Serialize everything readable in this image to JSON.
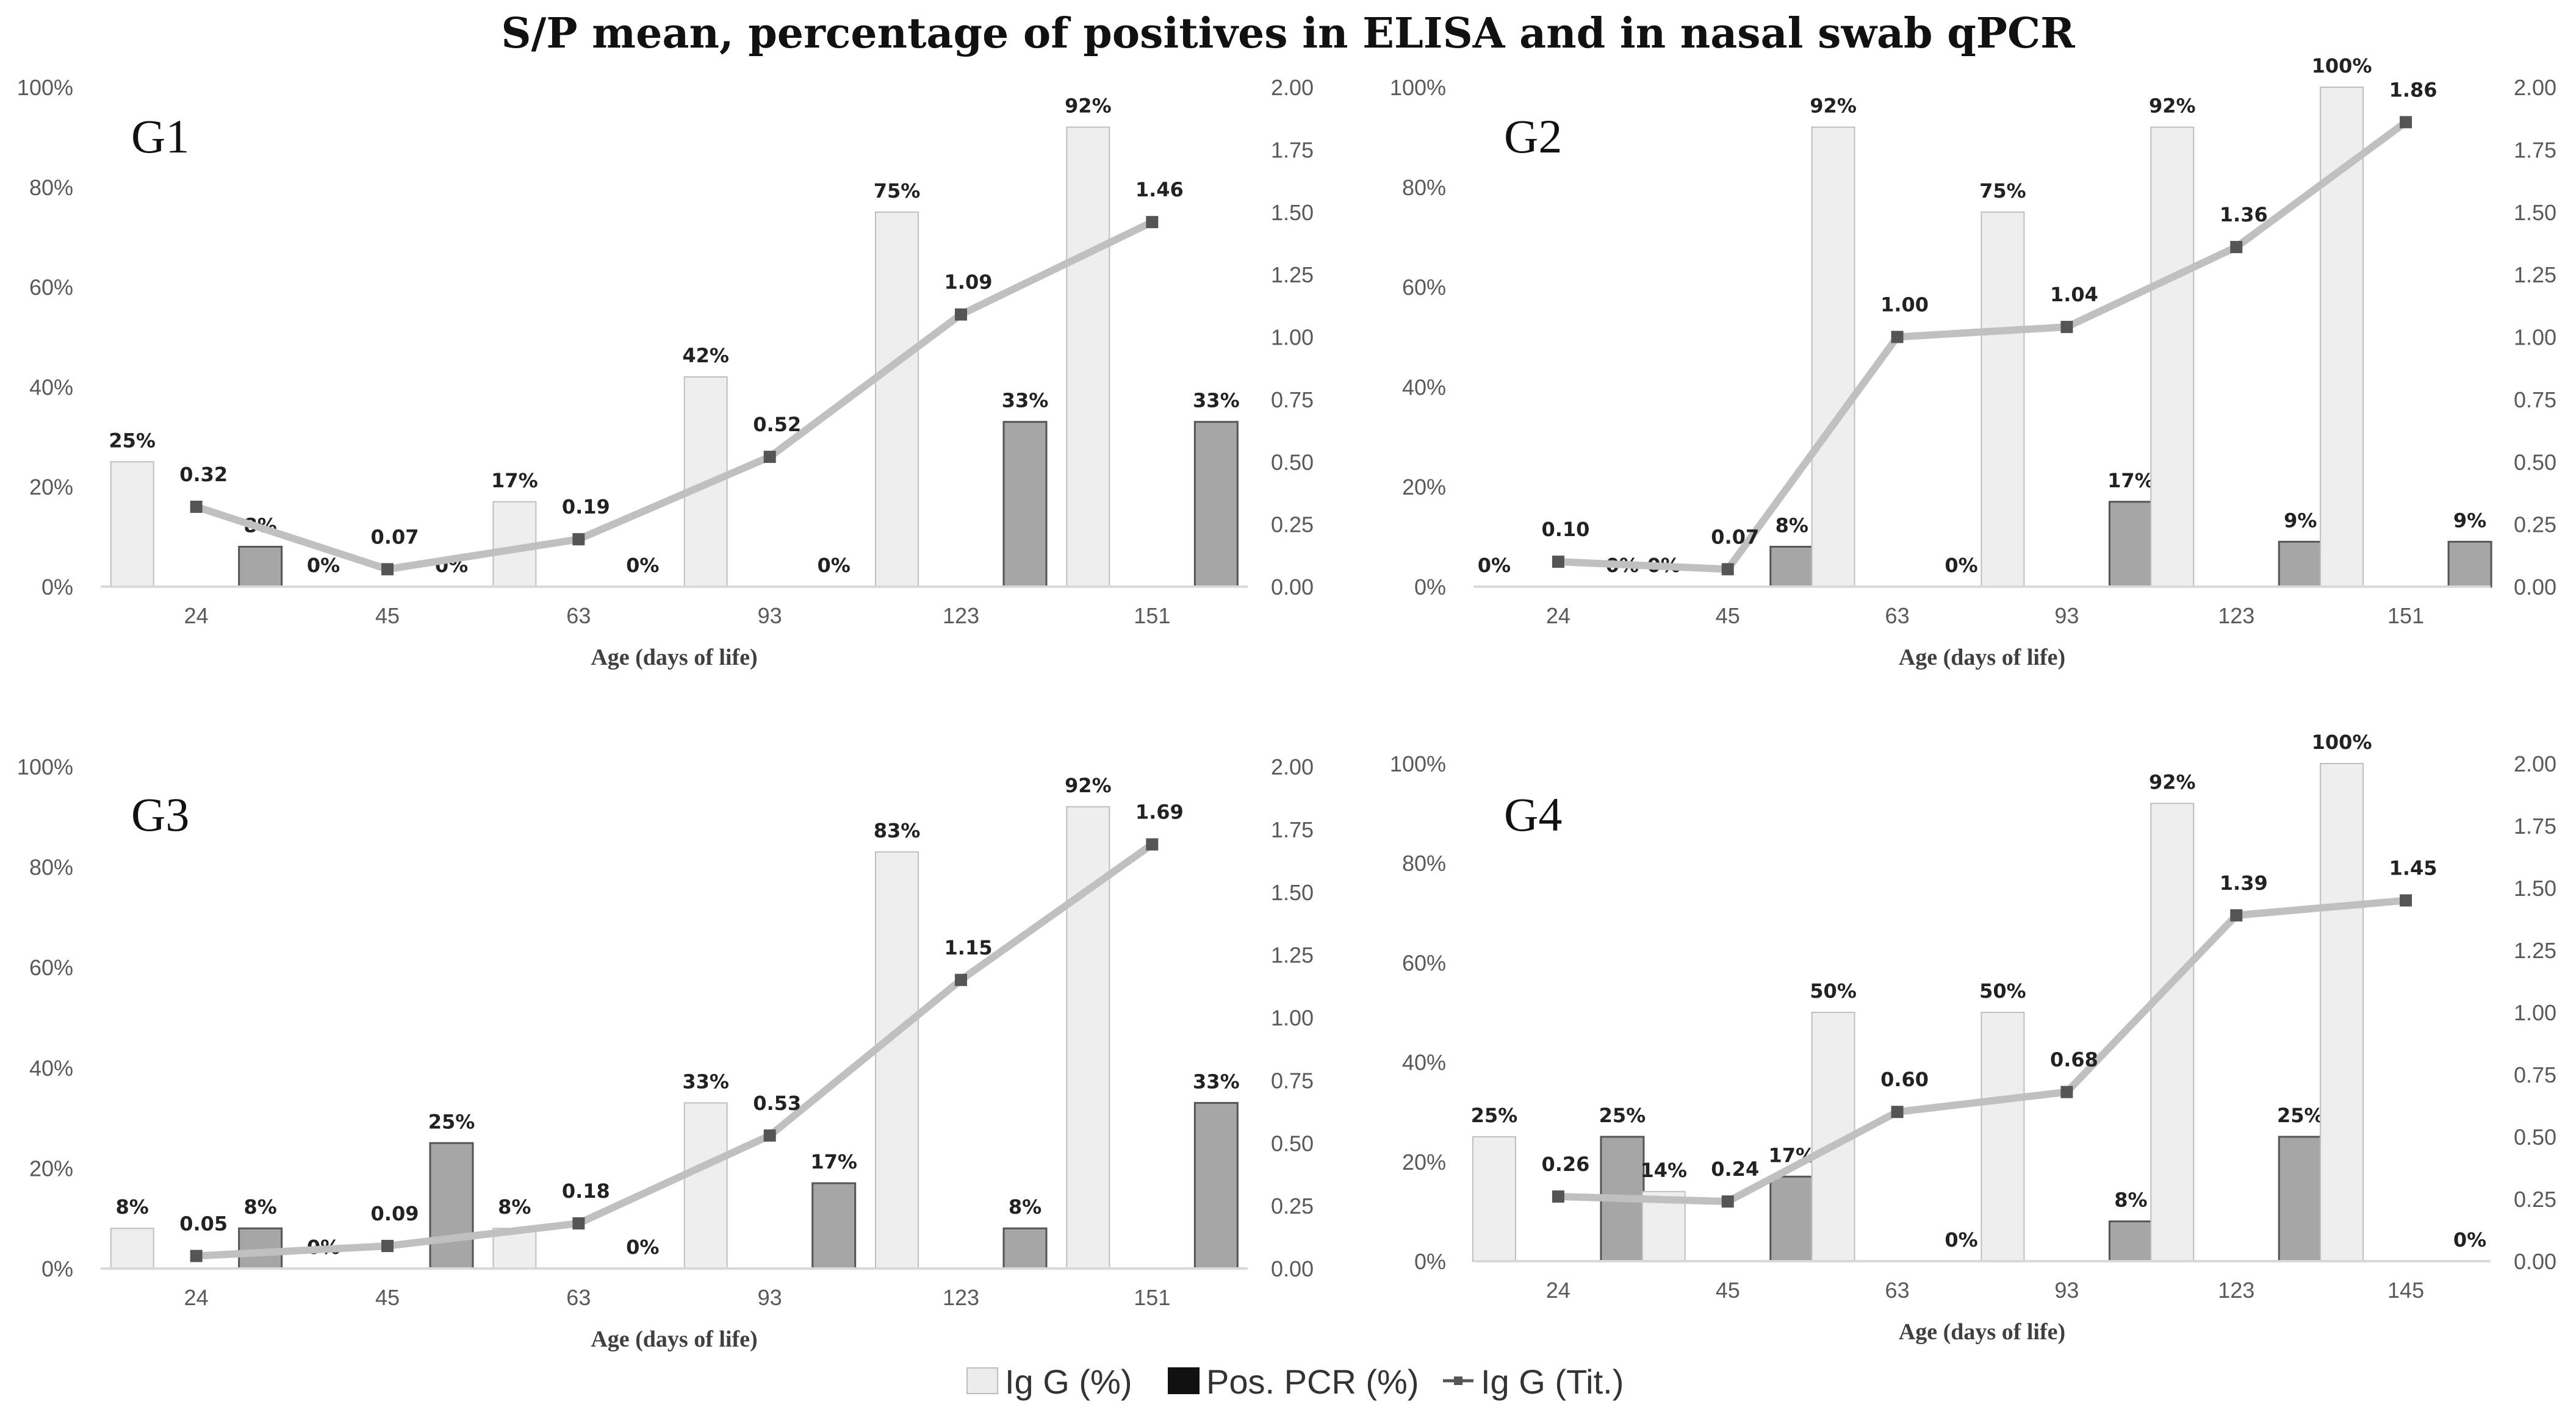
{
  "title": "S/P mean, percentage of positives in ELISA and in nasal swab qPCR",
  "legend": [
    {
      "name": "Ig G (%)",
      "kind": "bar",
      "color": "#ececec",
      "stroke": "#bdbdbd"
    },
    {
      "name": "Pos. PCR (%)",
      "kind": "bar",
      "color": "#111111",
      "stroke": "#111111"
    },
    {
      "name": "Ig G (Tit.)",
      "kind": "line",
      "color": "#555555"
    }
  ],
  "colors": {
    "igg_bar": "#eeeeee",
    "igg_bar_stroke": "#bfbfbf",
    "pcr_bar": "#a6a6a6",
    "pcr_bar_stroke": "#555555",
    "line": "#c0c0c0",
    "marker": "#555555",
    "axis": "#d9d9d9"
  },
  "chart_data": [
    {
      "type": "bar",
      "panel": "G1",
      "xlabel": "Age (days of life)",
      "ylabel_left": "",
      "ylabel_right": "",
      "categories": [
        "24",
        "45",
        "63",
        "93",
        "123",
        "151"
      ],
      "yticks_left": [
        "0%",
        "20%",
        "40%",
        "60%",
        "80%",
        "100%"
      ],
      "yticks_right": [
        "0.00",
        "0.25",
        "0.50",
        "0.75",
        "1.00",
        "1.25",
        "1.50",
        "1.75",
        "2.00"
      ],
      "ylim_left": [
        0,
        100
      ],
      "ylim_right": [
        0,
        2
      ],
      "series": [
        {
          "name": "Ig G (%)",
          "values": [
            25,
            0,
            17,
            42,
            75,
            92
          ],
          "labels": [
            "25%",
            "0%",
            "17%",
            "42%",
            "75%",
            "92%"
          ]
        },
        {
          "name": "Pos. PCR (%)",
          "values": [
            8,
            0,
            0,
            0,
            33,
            33
          ],
          "labels": [
            "8%",
            "0%",
            "0%",
            "0%",
            "33%",
            "33%"
          ]
        },
        {
          "name": "Ig G (Tit.)",
          "values": [
            0.32,
            0.07,
            0.19,
            0.52,
            1.09,
            1.46
          ],
          "labels": [
            "0.32",
            "0.07",
            "0.19",
            "0.52",
            "1.09",
            "1.46"
          ]
        }
      ]
    },
    {
      "type": "bar",
      "panel": "G2",
      "xlabel": "Age (days of life)",
      "ylabel_left": "",
      "ylabel_right": "",
      "categories": [
        "24",
        "45",
        "63",
        "93",
        "123",
        "151"
      ],
      "yticks_left": [
        "0%",
        "20%",
        "40%",
        "60%",
        "80%",
        "100%"
      ],
      "yticks_right": [
        "0.00",
        "0.25",
        "0.50",
        "0.75",
        "1.00",
        "1.25",
        "1.50",
        "1.75",
        "2.00"
      ],
      "ylim_left": [
        0,
        100
      ],
      "ylim_right": [
        0,
        2
      ],
      "series": [
        {
          "name": "Ig G (%)",
          "values": [
            0,
            0,
            92,
            75,
            92,
            100
          ],
          "labels": [
            "0%",
            "0%",
            "92%",
            "75%",
            "92%",
            "100%"
          ]
        },
        {
          "name": "Pos. PCR (%)",
          "values": [
            0,
            8,
            0,
            17,
            9,
            9
          ],
          "labels": [
            "0%",
            "8%",
            "0%",
            "17%",
            "9%",
            "9%"
          ]
        },
        {
          "name": "Ig G (Tit.)",
          "values": [
            0.1,
            0.07,
            1.0,
            1.04,
            1.36,
            1.86
          ],
          "labels": [
            "0.10",
            "0.07",
            "1.00",
            "1.04",
            "1.36",
            "1.86"
          ]
        }
      ]
    },
    {
      "type": "bar",
      "panel": "G3",
      "xlabel": "Age (days of life)",
      "ylabel_left": "",
      "ylabel_right": "",
      "categories": [
        "24",
        "45",
        "63",
        "93",
        "123",
        "151"
      ],
      "yticks_left": [
        "0%",
        "20%",
        "40%",
        "60%",
        "80%",
        "100%"
      ],
      "yticks_right": [
        "0.00",
        "0.25",
        "0.50",
        "0.75",
        "1.00",
        "1.25",
        "1.50",
        "1.75",
        "2.00"
      ],
      "ylim_left": [
        0,
        100
      ],
      "ylim_right": [
        0,
        2
      ],
      "series": [
        {
          "name": "Ig G (%)",
          "values": [
            8,
            0,
            8,
            33,
            83,
            92
          ],
          "labels": [
            "8%",
            "0%",
            "8%",
            "33%",
            "83%",
            "92%"
          ]
        },
        {
          "name": "Pos. PCR (%)",
          "values": [
            8,
            25,
            0,
            17,
            8,
            33
          ],
          "labels": [
            "8%",
            "25%",
            "0%",
            "17%",
            "8%",
            "33%"
          ]
        },
        {
          "name": "Ig G (Tit.)",
          "values": [
            0.05,
            0.09,
            0.18,
            0.53,
            1.15,
            1.69
          ],
          "labels": [
            "0.05",
            "0.09",
            "0.18",
            "0.53",
            "1.15",
            "1.69"
          ]
        }
      ]
    },
    {
      "type": "bar",
      "panel": "G4",
      "xlabel": "Age (days of life)",
      "ylabel_left": "",
      "ylabel_right": "",
      "categories": [
        "24",
        "45",
        "63",
        "93",
        "123",
        "145"
      ],
      "yticks_left": [
        "0%",
        "20%",
        "40%",
        "60%",
        "80%",
        "100%"
      ],
      "yticks_right": [
        "0.00",
        "0.25",
        "0.50",
        "0.75",
        "1.00",
        "1.25",
        "1.50",
        "1.75",
        "2.00"
      ],
      "ylim_left": [
        0,
        100
      ],
      "ylim_right": [
        0,
        2
      ],
      "series": [
        {
          "name": "Ig G (%)",
          "values": [
            25,
            14,
            50,
            50,
            92,
            100
          ],
          "labels": [
            "25%",
            "14%",
            "50%",
            "50%",
            "92%",
            "100%"
          ]
        },
        {
          "name": "Pos. PCR (%)",
          "values": [
            25,
            17,
            0,
            8,
            25,
            0
          ],
          "labels": [
            "25%",
            "17%",
            "0%",
            "8%",
            "25%",
            "0%"
          ]
        },
        {
          "name": "Ig G (Tit.)",
          "values": [
            0.26,
            0.24,
            0.6,
            0.68,
            1.39,
            1.45
          ],
          "labels": [
            "0.26",
            "0.24",
            "0.60",
            "0.68",
            "1.39",
            "1.45"
          ]
        }
      ]
    }
  ]
}
